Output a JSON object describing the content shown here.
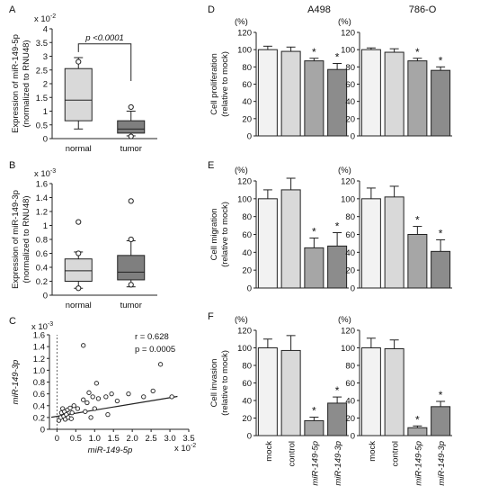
{
  "panels": {
    "A": "A",
    "B": "B",
    "C": "C",
    "D": "D",
    "E": "E",
    "F": "F"
  },
  "columns": {
    "left": "A498",
    "right": "786-O"
  },
  "chart_data": [
    {
      "id": "A",
      "type": "box",
      "exponent": "x 10",
      "exponent_power": "-2",
      "ylabel_line1": "Expression of miR-149-5p",
      "ylabel_line2": "(normalized to RNU48)",
      "ylim": [
        0,
        4
      ],
      "yticks": [
        "0",
        "0.5",
        "1",
        "1.5",
        "2",
        "2.5",
        "3",
        "3.5",
        "4"
      ],
      "categories": [
        "normal",
        "tumor"
      ],
      "boxes": [
        {
          "name": "normal",
          "min": 0.35,
          "q1": 0.65,
          "median": 1.4,
          "q3": 2.55,
          "max": 2.95,
          "outliers": [
            2.8
          ],
          "color": "#d9d9d9"
        },
        {
          "name": "tumor",
          "min": 0.1,
          "q1": 0.2,
          "median": 0.35,
          "q3": 0.65,
          "max": 1.0,
          "outliers": [
            1.15,
            0.08
          ],
          "color": "#7f7f7f"
        }
      ],
      "significance": "p <0.0001"
    },
    {
      "id": "B",
      "type": "box",
      "exponent": "x 10",
      "exponent_power": "-3",
      "ylabel_line1": "Expression of miR-149-3p",
      "ylabel_line2": "(normalized to RNU48)",
      "ylim": [
        0,
        1.6
      ],
      "yticks": [
        "0",
        "0.2",
        "0.4",
        "0.6",
        "0.8",
        "1",
        "1.2",
        "1.4",
        "1.6"
      ],
      "categories": [
        "normal",
        "tumor"
      ],
      "boxes": [
        {
          "name": "normal",
          "min": 0.1,
          "q1": 0.2,
          "median": 0.35,
          "q3": 0.52,
          "max": 0.62,
          "outliers": [
            1.05,
            0.6,
            0.1
          ],
          "color": "#d9d9d9"
        },
        {
          "name": "tumor",
          "min": 0.12,
          "q1": 0.22,
          "median": 0.33,
          "q3": 0.57,
          "max": 0.78,
          "outliers": [
            1.35,
            0.8,
            0.15
          ],
          "color": "#7f7f7f"
        }
      ]
    },
    {
      "id": "C",
      "type": "scatter",
      "y_exponent": "x 10",
      "y_exponent_power": "-3",
      "x_exponent": "x 10",
      "x_exponent_power": "-2",
      "xlabel": "miR-149-5p",
      "ylabel": "miR-149-3p",
      "xlim": [
        -0.2,
        3.5
      ],
      "ylim": [
        0,
        1.6
      ],
      "xticks": [
        "0",
        "0.5",
        "1.0",
        "1.5",
        "2.0",
        "2.5",
        "3.0",
        "3.5"
      ],
      "yticks": [
        "0",
        "0.2",
        "0.4",
        "0.6",
        "0.8",
        "1.0",
        "1.2",
        "1.4",
        "1.6"
      ],
      "stat_r": "r = 0.628",
      "stat_p": "p = 0.0005",
      "fit": {
        "slope": 0.105,
        "intercept": 0.22
      },
      "points": [
        [
          0.05,
          0.15
        ],
        [
          0.1,
          0.2
        ],
        [
          0.12,
          0.28
        ],
        [
          0.15,
          0.35
        ],
        [
          0.18,
          0.22
        ],
        [
          0.2,
          0.3
        ],
        [
          0.22,
          0.17
        ],
        [
          0.25,
          0.25
        ],
        [
          0.28,
          0.33
        ],
        [
          0.3,
          0.2
        ],
        [
          0.35,
          0.36
        ],
        [
          0.38,
          0.18
        ],
        [
          0.4,
          0.28
        ],
        [
          0.45,
          0.4
        ],
        [
          0.55,
          0.35
        ],
        [
          0.7,
          0.5
        ],
        [
          0.75,
          0.3
        ],
        [
          0.8,
          0.45
        ],
        [
          0.85,
          0.62
        ],
        [
          0.9,
          0.2
        ],
        [
          0.95,
          0.55
        ],
        [
          1.0,
          0.35
        ],
        [
          1.05,
          0.78
        ],
        [
          1.1,
          0.52
        ],
        [
          1.3,
          0.55
        ],
        [
          1.35,
          0.25
        ],
        [
          1.45,
          0.6
        ],
        [
          1.6,
          0.48
        ],
        [
          1.9,
          0.6
        ],
        [
          2.3,
          0.55
        ],
        [
          2.55,
          0.65
        ],
        [
          2.75,
          1.1
        ],
        [
          3.05,
          0.55
        ],
        [
          0.7,
          1.42
        ]
      ]
    },
    {
      "id": "D",
      "type": "bar",
      "cell": "A498",
      "ylabel_line1": "Cell proliferation",
      "ylabel_line2": "(relative to mock)",
      "unit": "(%)",
      "ylim": [
        0,
        120
      ],
      "yticks": [
        "0",
        "20",
        "40",
        "60",
        "80",
        "100",
        "120"
      ],
      "values": [
        100,
        98,
        87,
        77
      ],
      "errors": [
        4,
        5,
        3,
        7
      ],
      "significant": [
        false,
        false,
        true,
        true
      ]
    },
    {
      "id": "D2",
      "type": "bar",
      "cell": "786-O",
      "unit": "(%)",
      "ylim": [
        0,
        120
      ],
      "yticks": [
        "0",
        "20",
        "40",
        "60",
        "80",
        "100",
        "120"
      ],
      "values": [
        100,
        97,
        87,
        76
      ],
      "errors": [
        2,
        4,
        3,
        4
      ],
      "significant": [
        false,
        false,
        true,
        true
      ]
    },
    {
      "id": "E",
      "type": "bar",
      "cell": "A498",
      "ylabel_line1": "Cell migration",
      "ylabel_line2": "(relative to mock)",
      "unit": "(%)",
      "ylim": [
        0,
        120
      ],
      "yticks": [
        "0",
        "20",
        "40",
        "60",
        "80",
        "100",
        "120"
      ],
      "values": [
        100,
        110,
        45,
        47
      ],
      "errors": [
        10,
        13,
        11,
        15
      ],
      "significant": [
        false,
        false,
        true,
        true
      ]
    },
    {
      "id": "E2",
      "type": "bar",
      "cell": "786-O",
      "unit": "(%)",
      "ylim": [
        0,
        120
      ],
      "yticks": [
        "0",
        "20",
        "40",
        "60",
        "80",
        "100",
        "120"
      ],
      "values": [
        100,
        102,
        60,
        41
      ],
      "errors": [
        12,
        12,
        9,
        13
      ],
      "significant": [
        false,
        false,
        true,
        true
      ]
    },
    {
      "id": "F",
      "type": "bar",
      "cell": "A498",
      "ylabel_line1": "Cell invasion",
      "ylabel_line2": "(relative to mock)",
      "unit": "(%)",
      "ylim": [
        0,
        120
      ],
      "yticks": [
        "0",
        "20",
        "40",
        "60",
        "80",
        "100",
        "120"
      ],
      "values": [
        100,
        97,
        17,
        37
      ],
      "errors": [
        10,
        17,
        4,
        7
      ],
      "significant": [
        false,
        false,
        true,
        true
      ]
    },
    {
      "id": "F2",
      "type": "bar",
      "cell": "786-O",
      "unit": "(%)",
      "ylim": [
        0,
        120
      ],
      "yticks": [
        "0",
        "20",
        "40",
        "60",
        "80",
        "100",
        "120"
      ],
      "values": [
        100,
        99,
        9,
        33
      ],
      "errors": [
        11,
        10,
        2,
        6
      ],
      "significant": [
        false,
        false,
        true,
        true
      ]
    }
  ],
  "bar_categories": [
    "mock",
    "control",
    "miR-149-5p",
    "miR-149-3p"
  ],
  "bar_colors": [
    "#f2f2f2",
    "#d9d9d9",
    "#a6a6a6",
    "#8c8c8c"
  ],
  "star": "*"
}
